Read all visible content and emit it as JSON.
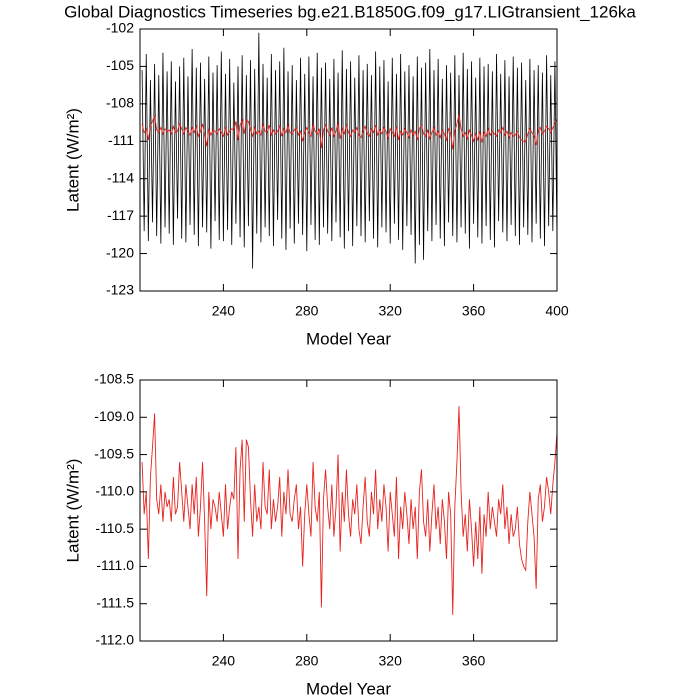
{
  "chart_data": [
    {
      "type": "line",
      "title": "Global Diagnostics Timeseries bg.e21.B1850G.f09_g17.LIGtransient_126ka",
      "x_label": "Model Year",
      "y_label": "Latent (W/m²)",
      "xlim": [
        200,
        400
      ],
      "xticks": [
        240,
        280,
        320,
        360,
        400
      ],
      "ylim": [
        -123,
        -102
      ],
      "yticks": [
        -123,
        -120,
        -117,
        -114,
        -111,
        -108,
        -105,
        -102
      ],
      "x": [
        201,
        202,
        203,
        204,
        205,
        206,
        207,
        208,
        209,
        210,
        211,
        212,
        213,
        214,
        215,
        216,
        217,
        218,
        219,
        220,
        221,
        222,
        223,
        224,
        225,
        226,
        227,
        228,
        229,
        230,
        231,
        232,
        233,
        234,
        235,
        236,
        237,
        238,
        239,
        240,
        241,
        242,
        243,
        244,
        245,
        246,
        247,
        248,
        249,
        250,
        251,
        252,
        253,
        254,
        255,
        256,
        257,
        258,
        259,
        260,
        261,
        262,
        263,
        264,
        265,
        266,
        267,
        268,
        269,
        270,
        271,
        272,
        273,
        274,
        275,
        276,
        277,
        278,
        279,
        280,
        281,
        282,
        283,
        284,
        285,
        286,
        287,
        288,
        289,
        290,
        291,
        292,
        293,
        294,
        295,
        296,
        297,
        298,
        299,
        300,
        301,
        302,
        303,
        304,
        305,
        306,
        307,
        308,
        309,
        310,
        311,
        312,
        313,
        314,
        315,
        316,
        317,
        318,
        319,
        320,
        321,
        322,
        323,
        324,
        325,
        326,
        327,
        328,
        329,
        330,
        331,
        332,
        333,
        334,
        335,
        336,
        337,
        338,
        339,
        340,
        341,
        342,
        343,
        344,
        345,
        346,
        347,
        348,
        349,
        350,
        351,
        352,
        353,
        354,
        355,
        356,
        357,
        358,
        359,
        360,
        361,
        362,
        363,
        364,
        365,
        366,
        367,
        368,
        369,
        370,
        371,
        372,
        373,
        374,
        375,
        376,
        377,
        378,
        379,
        380,
        381,
        382,
        383,
        384,
        385,
        386,
        387,
        388,
        389,
        390,
        391,
        392,
        393,
        394,
        395,
        396,
        397,
        398,
        399,
        400
      ],
      "series": [
        {
          "color": "#000000",
          "values": [
            -105.3,
            -118.2,
            -104.0,
            -119.0,
            -106.1,
            -117.5,
            -104.8,
            -118.6,
            -105.7,
            -119.2,
            -103.9,
            -117.9,
            -105.4,
            -118.4,
            -104.6,
            -119.3,
            -106.2,
            -117.2,
            -105.0,
            -118.8,
            -104.3,
            -119.1,
            -105.8,
            -117.7,
            -103.6,
            -118.5,
            -105.1,
            -119.4,
            -104.7,
            -117.9,
            -106.0,
            -118.3,
            -104.2,
            -119.6,
            -105.5,
            -117.4,
            -104.9,
            -118.9,
            -103.8,
            -119.0,
            -105.6,
            -118.1,
            -104.4,
            -119.3,
            -106.3,
            -117.6,
            -105.0,
            -118.7,
            -104.1,
            -119.5,
            -105.7,
            -117.8,
            -104.5,
            -121.2,
            -105.2,
            -118.4,
            -102.3,
            -119.1,
            -104.8,
            -117.9,
            -105.9,
            -118.6,
            -104.0,
            -119.4,
            -105.3,
            -117.3,
            -104.6,
            -118.8,
            -103.5,
            -119.7,
            -105.4,
            -118.0,
            -104.9,
            -119.2,
            -106.1,
            -117.6,
            -104.3,
            -118.5,
            -105.6,
            -119.8,
            -104.2,
            -117.7,
            -105.8,
            -118.9,
            -103.9,
            -119.3,
            -105.1,
            -117.9,
            -104.7,
            -118.4,
            -106.0,
            -119.0,
            -104.4,
            -117.5,
            -105.5,
            -118.7,
            -103.7,
            -119.6,
            -105.2,
            -118.2,
            -104.6,
            -119.4,
            -105.9,
            -117.8,
            -104.1,
            -118.6,
            -105.3,
            -119.1,
            -104.8,
            -117.4,
            -105.7,
            -118.8,
            -103.8,
            -119.5,
            -105.0,
            -117.9,
            -104.5,
            -118.3,
            -106.2,
            -119.2,
            -104.3,
            -117.6,
            -105.6,
            -118.9,
            -104.0,
            -119.7,
            -105.4,
            -117.8,
            -104.9,
            -118.5,
            -105.8,
            -120.8,
            -104.2,
            -119.3,
            -105.1,
            -120.5,
            -104.7,
            -118.2,
            -103.6,
            -119.0,
            -105.3,
            -117.7,
            -104.4,
            -118.8,
            -106.0,
            -119.4,
            -104.9,
            -117.5,
            -105.5,
            -118.6,
            -104.1,
            -119.1,
            -105.7,
            -117.9,
            -103.9,
            -118.4,
            -105.2,
            -119.6,
            -104.6,
            -117.6,
            -105.9,
            -118.7,
            -104.3,
            -119.2,
            -105.0,
            -117.8,
            -104.8,
            -118.9,
            -105.4,
            -119.5,
            -104.0,
            -117.4,
            -105.6,
            -118.3,
            -104.5,
            -119.0,
            -105.8,
            -117.7,
            -104.2,
            -118.6,
            -105.1,
            -119.3,
            -104.7,
            -117.9,
            -106.1,
            -118.5,
            -104.4,
            -119.1,
            -105.3,
            -117.6,
            -104.9,
            -118.8,
            -105.5,
            -119.4,
            -104.1,
            -117.8,
            -105.7,
            -118.2,
            -104.6,
            -119.0
          ]
        },
        {
          "color": "#e8231f",
          "values": [
            -109.6,
            -110.3,
            -110.0,
            -110.9,
            -109.8,
            -109.4,
            -108.95,
            -110.1,
            -110.3,
            -109.9,
            -110.4,
            -110.0,
            -110.2,
            -110.1,
            -110.4,
            -109.8,
            -110.3,
            -110.2,
            -109.6,
            -110.0,
            -110.4,
            -109.9,
            -110.2,
            -110.5,
            -109.9,
            -110.3,
            -109.8,
            -110.6,
            -110.2,
            -109.6,
            -110.4,
            -111.4,
            -110.0,
            -110.5,
            -110.1,
            -110.2,
            -110.4,
            -110.0,
            -110.3,
            -110.6,
            -109.9,
            -110.5,
            -110.2,
            -110.0,
            -110.1,
            -109.4,
            -110.9,
            -109.7,
            -109.3,
            -110.4,
            -109.3,
            -109.4,
            -110.1,
            -110.6,
            -109.9,
            -110.4,
            -110.2,
            -110.5,
            -109.6,
            -110.2,
            -110.3,
            -109.7,
            -110.5,
            -110.1,
            -110.4,
            -110.2,
            -109.8,
            -110.6,
            -110.0,
            -110.3,
            -109.7,
            -110.3,
            -110.4,
            -110.1,
            -109.9,
            -110.5,
            -110.2,
            -111.0,
            -110.3,
            -109.9,
            -110.3,
            -110.6,
            -109.6,
            -110.2,
            -110.4,
            -110.0,
            -111.55,
            -110.1,
            -109.7,
            -110.2,
            -110.5,
            -109.9,
            -110.6,
            -110.2,
            -109.5,
            -110.8,
            -110.0,
            -110.4,
            -109.7,
            -110.3,
            -110.6,
            -110.1,
            -110.3,
            -109.9,
            -110.5,
            -110.7,
            -110.2,
            -109.8,
            -110.4,
            -110.6,
            -110.0,
            -110.3,
            -109.7,
            -110.5,
            -110.1,
            -110.4,
            -109.9,
            -110.2,
            -110.8,
            -110.0,
            -110.3,
            -110.6,
            -109.8,
            -110.9,
            -110.2,
            -110.5,
            -110.0,
            -110.3,
            -110.7,
            -110.1,
            -110.5,
            -110.2,
            -110.9,
            -110.0,
            -109.7,
            -110.4,
            -110.6,
            -110.1,
            -110.8,
            -110.3,
            -109.9,
            -110.5,
            -110.2,
            -110.7,
            -110.1,
            -110.4,
            -110.9,
            -110.0,
            -110.3,
            -111.65,
            -110.2,
            -109.6,
            -108.85,
            -110.0,
            -110.6,
            -110.3,
            -110.8,
            -110.1,
            -110.5,
            -111.0,
            -110.4,
            -110.9,
            -110.2,
            -111.1,
            -110.3,
            -110.6,
            -110.0,
            -110.5,
            -110.2,
            -110.4,
            -110.6,
            -110.1,
            -110.3,
            -109.9,
            -110.5,
            -110.2,
            -110.7,
            -110.3,
            -110.6,
            -110.5,
            -110.2,
            -110.7,
            -110.9,
            -111.0,
            -111.05,
            -110.4,
            -110.0,
            -110.3,
            -110.6,
            -111.3,
            -110.1,
            -109.9,
            -110.4,
            -110.2,
            -109.8,
            -110.0,
            -110.3,
            -109.9,
            -109.6,
            -109.2
          ]
        }
      ]
    },
    {
      "type": "line",
      "x_label": "Model Year",
      "y_label": "Latent (W/m²)",
      "xlim": [
        200,
        400
      ],
      "xticks": [
        240,
        280,
        320,
        360
      ],
      "ylim": [
        -112,
        -108.5
      ],
      "yticks": [
        {
          "value": -112,
          "label": "-112.0"
        },
        -111.5,
        {
          "value": -111,
          "label": "-111.0"
        },
        -110.5,
        {
          "value": -110,
          "label": "-110.0"
        },
        -109.5,
        {
          "value": -109,
          "label": "-109.0"
        },
        -108.5
      ],
      "x": [
        201,
        202,
        203,
        204,
        205,
        206,
        207,
        208,
        209,
        210,
        211,
        212,
        213,
        214,
        215,
        216,
        217,
        218,
        219,
        220,
        221,
        222,
        223,
        224,
        225,
        226,
        227,
        228,
        229,
        230,
        231,
        232,
        233,
        234,
        235,
        236,
        237,
        238,
        239,
        240,
        241,
        242,
        243,
        244,
        245,
        246,
        247,
        248,
        249,
        250,
        251,
        252,
        253,
        254,
        255,
        256,
        257,
        258,
        259,
        260,
        261,
        262,
        263,
        264,
        265,
        266,
        267,
        268,
        269,
        270,
        271,
        272,
        273,
        274,
        275,
        276,
        277,
        278,
        279,
        280,
        281,
        282,
        283,
        284,
        285,
        286,
        287,
        288,
        289,
        290,
        291,
        292,
        293,
        294,
        295,
        296,
        297,
        298,
        299,
        300,
        301,
        302,
        303,
        304,
        305,
        306,
        307,
        308,
        309,
        310,
        311,
        312,
        313,
        314,
        315,
        316,
        317,
        318,
        319,
        320,
        321,
        322,
        323,
        324,
        325,
        326,
        327,
        328,
        329,
        330,
        331,
        332,
        333,
        334,
        335,
        336,
        337,
        338,
        339,
        340,
        341,
        342,
        343,
        344,
        345,
        346,
        347,
        348,
        349,
        350,
        351,
        352,
        353,
        354,
        355,
        356,
        357,
        358,
        359,
        360,
        361,
        362,
        363,
        364,
        365,
        366,
        367,
        368,
        369,
        370,
        371,
        372,
        373,
        374,
        375,
        376,
        377,
        378,
        379,
        380,
        381,
        382,
        383,
        384,
        385,
        386,
        387,
        388,
        389,
        390,
        391,
        392,
        393,
        394,
        395,
        396,
        397,
        398,
        399,
        400
      ],
      "series": [
        {
          "color": "#e8231f",
          "values": [
            -109.6,
            -110.3,
            -110.0,
            -110.9,
            -109.8,
            -109.4,
            -108.95,
            -110.1,
            -110.3,
            -109.9,
            -110.4,
            -110.0,
            -110.2,
            -110.1,
            -110.4,
            -109.8,
            -110.3,
            -110.2,
            -109.6,
            -110.0,
            -110.4,
            -109.9,
            -110.2,
            -110.5,
            -109.9,
            -110.3,
            -109.8,
            -110.6,
            -110.2,
            -109.6,
            -110.4,
            -111.4,
            -110.0,
            -110.5,
            -110.1,
            -110.2,
            -110.4,
            -110.0,
            -110.3,
            -110.6,
            -109.9,
            -110.5,
            -110.2,
            -110.0,
            -110.1,
            -109.4,
            -110.9,
            -109.7,
            -109.3,
            -110.4,
            -109.3,
            -109.4,
            -110.1,
            -110.6,
            -109.9,
            -110.4,
            -110.2,
            -110.5,
            -109.6,
            -110.2,
            -110.3,
            -109.7,
            -110.5,
            -110.1,
            -110.4,
            -110.2,
            -109.8,
            -110.6,
            -110.0,
            -110.3,
            -109.7,
            -110.3,
            -110.4,
            -110.1,
            -109.9,
            -110.5,
            -110.2,
            -111.0,
            -110.3,
            -109.9,
            -110.3,
            -110.6,
            -109.6,
            -110.2,
            -110.4,
            -110.0,
            -111.55,
            -110.1,
            -109.7,
            -110.2,
            -110.5,
            -109.9,
            -110.6,
            -110.2,
            -109.5,
            -110.8,
            -110.0,
            -110.4,
            -109.7,
            -110.3,
            -110.6,
            -110.1,
            -110.3,
            -109.9,
            -110.5,
            -110.7,
            -110.2,
            -109.8,
            -110.4,
            -110.6,
            -110.0,
            -110.3,
            -109.7,
            -110.5,
            -110.1,
            -110.4,
            -109.9,
            -110.2,
            -110.8,
            -110.0,
            -110.3,
            -110.6,
            -109.8,
            -110.9,
            -110.2,
            -110.5,
            -110.0,
            -110.3,
            -110.7,
            -110.1,
            -110.5,
            -110.2,
            -110.9,
            -110.0,
            -109.7,
            -110.4,
            -110.6,
            -110.1,
            -110.8,
            -110.3,
            -109.9,
            -110.5,
            -110.2,
            -110.7,
            -110.1,
            -110.4,
            -110.9,
            -110.0,
            -110.3,
            -111.65,
            -110.2,
            -109.6,
            -108.85,
            -110.0,
            -110.6,
            -110.3,
            -110.8,
            -110.1,
            -110.5,
            -111.0,
            -110.4,
            -110.9,
            -110.2,
            -111.1,
            -110.3,
            -110.6,
            -110.0,
            -110.5,
            -110.2,
            -110.4,
            -110.6,
            -110.1,
            -110.3,
            -109.9,
            -110.5,
            -110.2,
            -110.7,
            -110.3,
            -110.6,
            -110.5,
            -110.2,
            -110.7,
            -110.9,
            -111.0,
            -111.05,
            -110.4,
            -110.0,
            -110.3,
            -110.6,
            -111.3,
            -110.1,
            -109.9,
            -110.4,
            -110.2,
            -109.8,
            -110.0,
            -110.3,
            -109.9,
            -109.6,
            -109.2
          ]
        }
      ]
    }
  ]
}
